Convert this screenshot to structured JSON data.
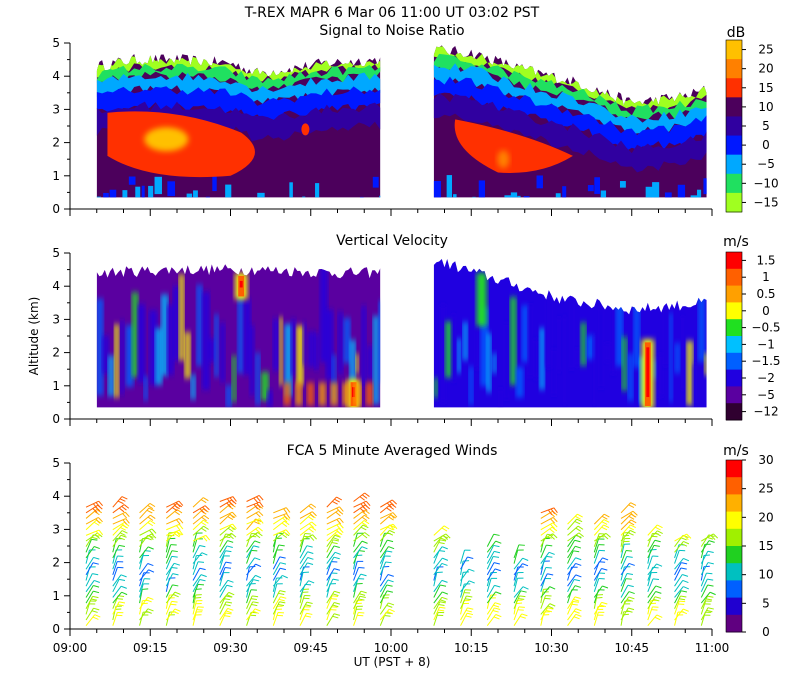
{
  "header": {
    "title": "T-REX   MAPR   6 Mar 06   11:00 UT   03:02   PST"
  },
  "axes": {
    "ylabel": "Altitude (km)",
    "xlabel": "UT  (PST + 8)",
    "ylim": [
      0,
      5
    ],
    "xlim_minutes": [
      540,
      660
    ],
    "y_ticks": [
      "0",
      "1",
      "2",
      "3",
      "4",
      "5"
    ],
    "x_ticks": [
      "09:00",
      "09:15",
      "09:30",
      "09:45",
      "10:00",
      "10:15",
      "10:30",
      "10:45",
      "11:00"
    ],
    "x_tick_minutes": [
      540,
      555,
      570,
      585,
      600,
      615,
      630,
      645,
      660
    ]
  },
  "panels": [
    {
      "title": "Signal to Noise Ratio",
      "unit": "dB",
      "colorbar_labels": [
        "25",
        "20",
        "15",
        "10",
        "5",
        "0",
        "−5",
        "−10",
        "−15"
      ],
      "colors": [
        "#ffc000",
        "#ff8000",
        "#ff3000",
        "#4c005c",
        "#3000a0",
        "#0018ff",
        "#00a8ff",
        "#20e060",
        "#a0ff20"
      ]
    },
    {
      "title": "Vertical Velocity",
      "unit": "m/s",
      "colorbar_labels": [
        "1.5",
        "1",
        "0.5",
        "0",
        "−0.5",
        "−1",
        "−1.5",
        "−2",
        "−5",
        "−12"
      ],
      "colors": [
        "#ff0000",
        "#ff6000",
        "#ffa000",
        "#ffff00",
        "#20e020",
        "#00c0ff",
        "#0060ff",
        "#2000e0",
        "#5a00a0",
        "#300030"
      ]
    },
    {
      "title": "FCA 5 Minute Averaged Winds",
      "unit": "m/s",
      "colorbar_labels": [
        "30",
        "25",
        "20",
        "15",
        "10",
        "5",
        "0"
      ],
      "colors": [
        "#ff0000",
        "#ff6000",
        "#ffb000",
        "#ffff00",
        "#a0f000",
        "#20d020",
        "#00c0c0",
        "#0060ff",
        "#2000d0",
        "#600080"
      ]
    }
  ],
  "chart_data": [
    {
      "type": "heatmap",
      "title": "Signal to Noise Ratio",
      "unit": "dB",
      "x_unit": "UT minutes after 00:00",
      "xlim": [
        540,
        660
      ],
      "ylim": [
        0,
        5
      ],
      "levels": [
        -15,
        -10,
        -5,
        0,
        5,
        10,
        15,
        20,
        25
      ],
      "data_gaps": [
        [
          540,
          545
        ],
        [
          598,
          608
        ]
      ],
      "top_of_data_km": [
        {
          "t": 545,
          "h": 4.3
        },
        {
          "t": 552,
          "h": 4.5
        },
        {
          "t": 560,
          "h": 4.5
        },
        {
          "t": 570,
          "h": 4.4
        },
        {
          "t": 575,
          "h": 4.1
        },
        {
          "t": 580,
          "h": 4.2
        },
        {
          "t": 588,
          "h": 4.4
        },
        {
          "t": 598,
          "h": 4.5
        },
        {
          "t": 608,
          "h": 4.8
        },
        {
          "t": 615,
          "h": 4.7
        },
        {
          "t": 625,
          "h": 4.2
        },
        {
          "t": 635,
          "h": 3.8
        },
        {
          "t": 645,
          "h": 3.2
        },
        {
          "t": 655,
          "h": 3.4
        },
        {
          "t": 659,
          "h": 3.6
        }
      ],
      "strongest_echo": "15 to 20 dB layer between 1.5 and 3 km, near 09:05–09:30 and 10:10–10:30"
    },
    {
      "type": "heatmap",
      "title": "Vertical Velocity",
      "unit": "m/s",
      "x_unit": "UT minutes after 00:00",
      "xlim": [
        540,
        660
      ],
      "ylim": [
        0,
        5
      ],
      "levels": [
        -12,
        -5,
        -2,
        -1.5,
        -1,
        -0.5,
        0,
        0.5,
        1,
        1.5
      ],
      "data_gaps": [
        [
          540,
          545
        ],
        [
          598,
          608
        ]
      ],
      "top_of_data_km": [
        {
          "t": 545,
          "h": 4.4
        },
        {
          "t": 560,
          "h": 4.5
        },
        {
          "t": 575,
          "h": 4.5
        },
        {
          "t": 590,
          "h": 4.4
        },
        {
          "t": 598,
          "h": 4.4
        },
        {
          "t": 608,
          "h": 4.8
        },
        {
          "t": 620,
          "h": 4.2
        },
        {
          "t": 632,
          "h": 3.6
        },
        {
          "t": 645,
          "h": 3.3
        },
        {
          "t": 659,
          "h": 3.5
        }
      ],
      "notable_updrafts": [
        {
          "t": 572,
          "alt_km": [
            3.6,
            4.4
          ],
          "w": 1.5
        },
        {
          "t": 593,
          "alt_km": [
            0.3,
            1.2
          ],
          "w": 1.0
        },
        {
          "t": 648,
          "alt_km": [
            0.3,
            2.4
          ],
          "w": 1.5
        }
      ]
    },
    {
      "type": "barbs",
      "title": "FCA 5 Minute Averaged Winds",
      "unit": "m/s",
      "x_unit": "UT minutes after 00:00",
      "xlim": [
        540,
        660
      ],
      "ylim": [
        0,
        5
      ],
      "speed_range": [
        0,
        30
      ],
      "profile_times": [
        543,
        548,
        553,
        558,
        563,
        568,
        573,
        578,
        583,
        588,
        593,
        598,
        608,
        613,
        618,
        623,
        628,
        633,
        638,
        643,
        648,
        653,
        658
      ],
      "speed_profile": [
        {
          "alt_km": 0.5,
          "speed": 19
        },
        {
          "alt_km": 1.0,
          "speed": 11
        },
        {
          "alt_km": 1.5,
          "speed": 7
        },
        {
          "alt_km": 2.0,
          "speed": 11
        },
        {
          "alt_km": 2.5,
          "speed": 16
        },
        {
          "alt_km": 3.0,
          "speed": 20
        },
        {
          "alt_km": 3.5,
          "speed": 25
        },
        {
          "alt_km": 4.0,
          "speed": 29
        }
      ]
    }
  ]
}
